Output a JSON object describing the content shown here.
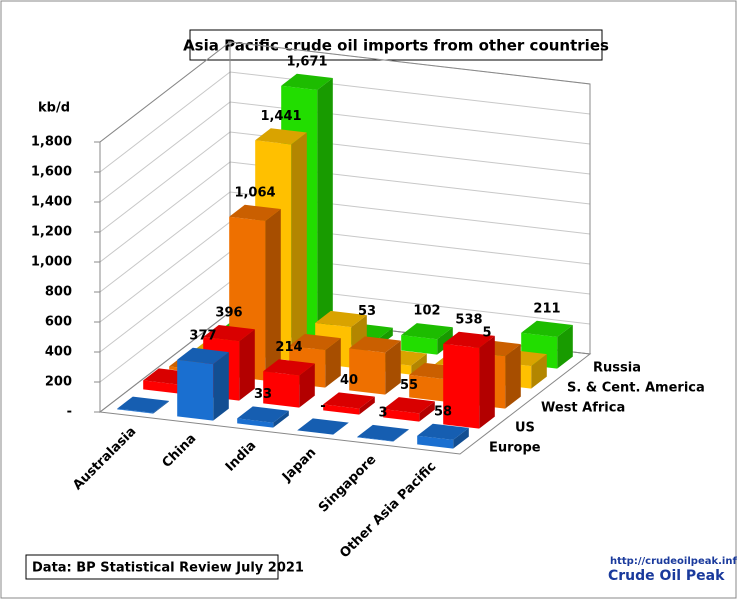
{
  "chart_data": {
    "type": "bar3d",
    "title": "Asia Pacific crude oil imports from other countries",
    "y_label": "kb/d",
    "source": "Data: BP Statistical Review July 2021",
    "logo_url": "http://crudeoilpeak.info",
    "logo_name": "Crude Oil Peak",
    "categories": [
      "Australasia",
      "China",
      "India",
      "Japan",
      "Singapore",
      "Other Asia Pacific"
    ],
    "series": [
      {
        "name": "Europe",
        "color": "#1a6fd0",
        "values": [
          5,
          377,
          33,
          0,
          3,
          58
        ],
        "value_labels": [
          null,
          "377",
          "33",
          "-",
          "3",
          "58"
        ]
      },
      {
        "name": "US",
        "color": "#ff0000",
        "values": [
          60,
          396,
          214,
          40,
          55,
          538
        ],
        "value_labels": [
          null,
          "396",
          "214",
          "40",
          "55",
          "538"
        ]
      },
      {
        "name": "West Africa",
        "color": "#ee7000",
        "values": [
          20,
          1064,
          250,
          280,
          150,
          350
        ],
        "value_labels": [
          null,
          "1,064",
          null,
          null,
          null,
          null
        ]
      },
      {
        "name": "S. & Cent. America",
        "color": "#ffc000",
        "values": [
          0,
          1441,
          270,
          60,
          90,
          150
        ],
        "value_labels": [
          null,
          "1,441",
          null,
          null,
          null,
          null
        ]
      },
      {
        "name": "Russia",
        "color": "#22dd00",
        "values": [
          0,
          1671,
          53,
          102,
          5,
          211
        ],
        "value_labels": [
          null,
          "1,671",
          "53",
          "102",
          "5",
          "211"
        ]
      }
    ],
    "ylim": [
      0,
      1800
    ],
    "yticks": [
      {
        "value": 0,
        "label": "-"
      },
      200,
      400,
      600,
      800,
      {
        "value": 1000,
        "label": "1,000"
      },
      {
        "value": 1200,
        "label": "1,200"
      },
      {
        "value": 1400,
        "label": "1,400"
      },
      {
        "value": 1600,
        "label": "1,600"
      },
      {
        "value": 1800,
        "label": "1,800"
      }
    ],
    "grid": true
  }
}
